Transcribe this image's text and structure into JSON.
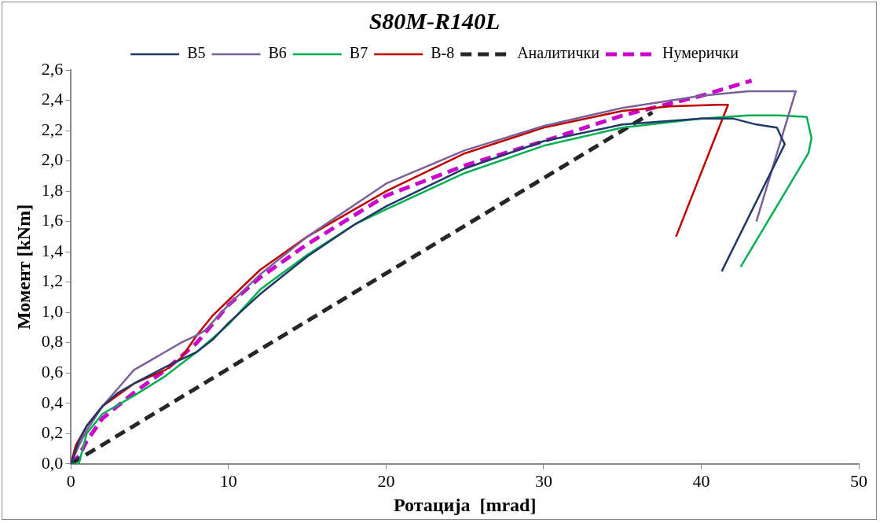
{
  "chart_data": {
    "type": "line",
    "title": "S80M-R140L",
    "xlabel": "Ротација  [mrad]",
    "ylabel": "Момент [kNm]",
    "xlim": [
      0,
      50
    ],
    "xticks": [
      0,
      10,
      20,
      30,
      40,
      50
    ],
    "ylim": [
      0,
      2.6
    ],
    "yticks": [
      {
        "value": 0,
        "label": "0,0"
      },
      {
        "value": 0.2,
        "label": "0,2"
      },
      {
        "value": 0.4,
        "label": "0,4"
      },
      {
        "value": 0.6,
        "label": "0,6"
      },
      {
        "value": 0.8,
        "label": "0,8"
      },
      {
        "value": 1,
        "label": "1,0"
      },
      {
        "value": 1.2,
        "label": "1,2"
      },
      {
        "value": 1.4,
        "label": "1,4"
      },
      {
        "value": 1.6,
        "label": "1,6"
      },
      {
        "value": 1.8,
        "label": "1,8"
      },
      {
        "value": 2,
        "label": "2,0"
      },
      {
        "value": 2.2,
        "label": "2,2"
      },
      {
        "value": 2.4,
        "label": "2,4"
      },
      {
        "value": 2.6,
        "label": "2,6"
      }
    ],
    "grid": false,
    "legend": "top",
    "marker": "none",
    "series": [
      {
        "name": "B5",
        "color": "#1f3864",
        "line_style": "solid",
        "x": [
          0,
          0.5,
          1,
          2,
          3,
          4,
          6,
          8,
          9,
          10,
          12,
          15,
          18,
          20,
          25,
          30,
          35,
          40,
          42,
          43.5,
          44.8,
          45.3,
          41.3
        ],
        "values": [
          0,
          0.15,
          0.25,
          0.38,
          0.47,
          0.53,
          0.64,
          0.74,
          0.82,
          0.93,
          1.12,
          1.37,
          1.58,
          1.7,
          1.95,
          2.13,
          2.24,
          2.28,
          2.28,
          2.24,
          2.22,
          2.11,
          1.27
        ]
      },
      {
        "name": "B6",
        "color": "#7b5f99",
        "line_style": "solid",
        "x": [
          0,
          0.5,
          1,
          2,
          3,
          4,
          5,
          6,
          7,
          8,
          8.5,
          10,
          12,
          15,
          20,
          25,
          30,
          35,
          40,
          43,
          45,
          46,
          43.5
        ],
        "values": [
          0,
          0.12,
          0.22,
          0.38,
          0.5,
          0.62,
          0.68,
          0.74,
          0.8,
          0.85,
          0.88,
          1.05,
          1.25,
          1.5,
          1.85,
          2.07,
          2.23,
          2.35,
          2.43,
          2.46,
          2.46,
          2.46,
          1.6
        ]
      },
      {
        "name": "B7",
        "color": "#00b050",
        "line_style": "solid",
        "x": [
          0,
          0.5,
          1,
          2,
          4,
          6,
          8,
          10,
          12,
          15,
          18,
          20,
          25,
          30,
          35,
          40,
          43,
          45,
          46.7,
          47,
          46.8,
          42.5
        ],
        "values": [
          0,
          0,
          0.2,
          0.33,
          0.45,
          0.58,
          0.74,
          0.92,
          1.15,
          1.38,
          1.58,
          1.68,
          1.92,
          2.1,
          2.22,
          2.28,
          2.3,
          2.3,
          2.29,
          2.15,
          2.05,
          1.3
        ]
      },
      {
        "name": "B-8",
        "color": "#c00000",
        "line_style": "solid",
        "x": [
          0,
          0.3,
          1,
          2,
          4,
          6,
          7,
          8,
          9,
          10,
          12,
          15,
          18,
          20,
          25,
          30,
          35,
          38,
          41,
          41.7,
          38.4
        ],
        "values": [
          0,
          0.12,
          0.25,
          0.38,
          0.53,
          0.62,
          0.7,
          0.85,
          0.98,
          1.08,
          1.28,
          1.5,
          1.68,
          1.8,
          2.05,
          2.22,
          2.33,
          2.36,
          2.37,
          2.37,
          1.5
        ]
      },
      {
        "name": "Аналитички",
        "color": "#262626",
        "line_style": "dashed",
        "x": [
          0,
          36.9
        ],
        "values": [
          0,
          2.32
        ]
      },
      {
        "name": "Нумерички",
        "color": "#cc00cc",
        "line_style": "dashed",
        "x": [
          0,
          0.5,
          1,
          2,
          4,
          6,
          8,
          10,
          12,
          15,
          20,
          25,
          30,
          35,
          40,
          43.2
        ],
        "values": [
          0,
          0.05,
          0.15,
          0.3,
          0.47,
          0.62,
          0.8,
          1.05,
          1.23,
          1.45,
          1.77,
          1.97,
          2.13,
          2.3,
          2.43,
          2.53
        ]
      }
    ]
  }
}
